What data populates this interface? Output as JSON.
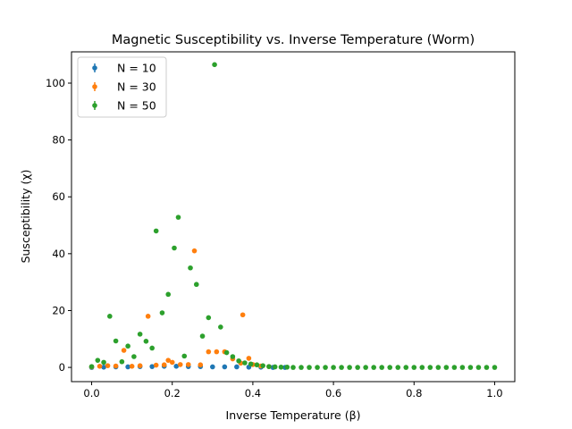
{
  "chart_data": {
    "type": "scatter",
    "title": "Magnetic Susceptibility vs. Inverse Temperature (Worm)",
    "xlabel": "Inverse Temperature (β)",
    "ylabel": "Susceptibility (χ)",
    "xlim": [
      -0.05,
      1.05
    ],
    "ylim": [
      -5,
      111
    ],
    "xticks": [
      0.0,
      0.2,
      0.4,
      0.6,
      0.8,
      1.0
    ],
    "xtick_labels": [
      "0.0",
      "0.2",
      "0.4",
      "0.6",
      "0.8",
      "1.0"
    ],
    "yticks": [
      0,
      20,
      40,
      60,
      80,
      100
    ],
    "ytick_labels": [
      "0",
      "20",
      "40",
      "60",
      "80",
      "100"
    ],
    "grid": false,
    "legend_position": "top-left",
    "series": [
      {
        "name": "N = 10",
        "color": "#1f77b4",
        "points": [
          [
            0.0,
            0.0
          ],
          [
            0.03,
            0.1
          ],
          [
            0.06,
            0.2
          ],
          [
            0.09,
            0.2
          ],
          [
            0.12,
            0.3
          ],
          [
            0.15,
            0.3
          ],
          [
            0.18,
            0.4
          ],
          [
            0.21,
            0.4
          ],
          [
            0.24,
            0.3
          ],
          [
            0.27,
            0.3
          ],
          [
            0.3,
            0.2
          ],
          [
            0.33,
            0.2
          ],
          [
            0.36,
            0.2
          ],
          [
            0.39,
            0.1
          ],
          [
            0.42,
            0.1
          ],
          [
            0.45,
            0.0
          ],
          [
            0.48,
            0.0
          ]
        ]
      },
      {
        "name": "N = 30",
        "color": "#ff7f0e",
        "points": [
          [
            0.0,
            0.2
          ],
          [
            0.02,
            0.4
          ],
          [
            0.04,
            0.6
          ],
          [
            0.06,
            0.5
          ],
          [
            0.08,
            6.0
          ],
          [
            0.1,
            0.4
          ],
          [
            0.12,
            0.6
          ],
          [
            0.14,
            18.0
          ],
          [
            0.16,
            0.8
          ],
          [
            0.18,
            0.9
          ],
          [
            0.19,
            2.5
          ],
          [
            0.2,
            1.8
          ],
          [
            0.22,
            1.0
          ],
          [
            0.24,
            1.0
          ],
          [
            0.255,
            41.0
          ],
          [
            0.27,
            0.9
          ],
          [
            0.29,
            5.5
          ],
          [
            0.31,
            5.5
          ],
          [
            0.33,
            5.5
          ],
          [
            0.35,
            3.0
          ],
          [
            0.37,
            1.5
          ],
          [
            0.375,
            18.5
          ],
          [
            0.39,
            3.2
          ],
          [
            0.4,
            1.0
          ],
          [
            0.42,
            0.5
          ],
          [
            0.44,
            0.3
          ]
        ]
      },
      {
        "name": "N = 50",
        "color": "#2ca02c",
        "points": [
          [
            0.0,
            0.3
          ],
          [
            0.015,
            2.5
          ],
          [
            0.03,
            1.8
          ],
          [
            0.045,
            18.0
          ],
          [
            0.06,
            9.3
          ],
          [
            0.075,
            2.0
          ],
          [
            0.09,
            7.5
          ],
          [
            0.105,
            3.8
          ],
          [
            0.12,
            11.7
          ],
          [
            0.135,
            9.2
          ],
          [
            0.15,
            6.8
          ],
          [
            0.16,
            48.0
          ],
          [
            0.175,
            19.2
          ],
          [
            0.19,
            25.7
          ],
          [
            0.205,
            42.0
          ],
          [
            0.215,
            52.8
          ],
          [
            0.23,
            4.0
          ],
          [
            0.245,
            35.0
          ],
          [
            0.26,
            29.2
          ],
          [
            0.275,
            11.0
          ],
          [
            0.29,
            17.5
          ],
          [
            0.305,
            106.5
          ],
          [
            0.32,
            14.2
          ],
          [
            0.335,
            5.2
          ],
          [
            0.35,
            3.8
          ],
          [
            0.365,
            2.3
          ],
          [
            0.38,
            1.6
          ],
          [
            0.395,
            1.2
          ],
          [
            0.41,
            0.9
          ],
          [
            0.425,
            0.6
          ],
          [
            0.44,
            0.3
          ],
          [
            0.455,
            0.2
          ],
          [
            0.47,
            0.1
          ],
          [
            0.485,
            0.1
          ],
          [
            0.5,
            0.0
          ],
          [
            0.52,
            0.0
          ],
          [
            0.54,
            0.0
          ],
          [
            0.56,
            0.0
          ],
          [
            0.58,
            0.0
          ],
          [
            0.6,
            0.0
          ],
          [
            0.62,
            0.0
          ],
          [
            0.64,
            0.0
          ],
          [
            0.66,
            0.0
          ],
          [
            0.68,
            0.0
          ],
          [
            0.7,
            0.0
          ],
          [
            0.72,
            0.0
          ],
          [
            0.74,
            0.0
          ],
          [
            0.76,
            0.0
          ],
          [
            0.78,
            0.0
          ],
          [
            0.8,
            0.0
          ],
          [
            0.82,
            0.0
          ],
          [
            0.84,
            0.0
          ],
          [
            0.86,
            0.0
          ],
          [
            0.88,
            0.0
          ],
          [
            0.9,
            0.0
          ],
          [
            0.92,
            0.0
          ],
          [
            0.94,
            0.0
          ],
          [
            0.96,
            0.0
          ],
          [
            0.98,
            0.0
          ],
          [
            1.0,
            0.0
          ]
        ]
      }
    ]
  }
}
